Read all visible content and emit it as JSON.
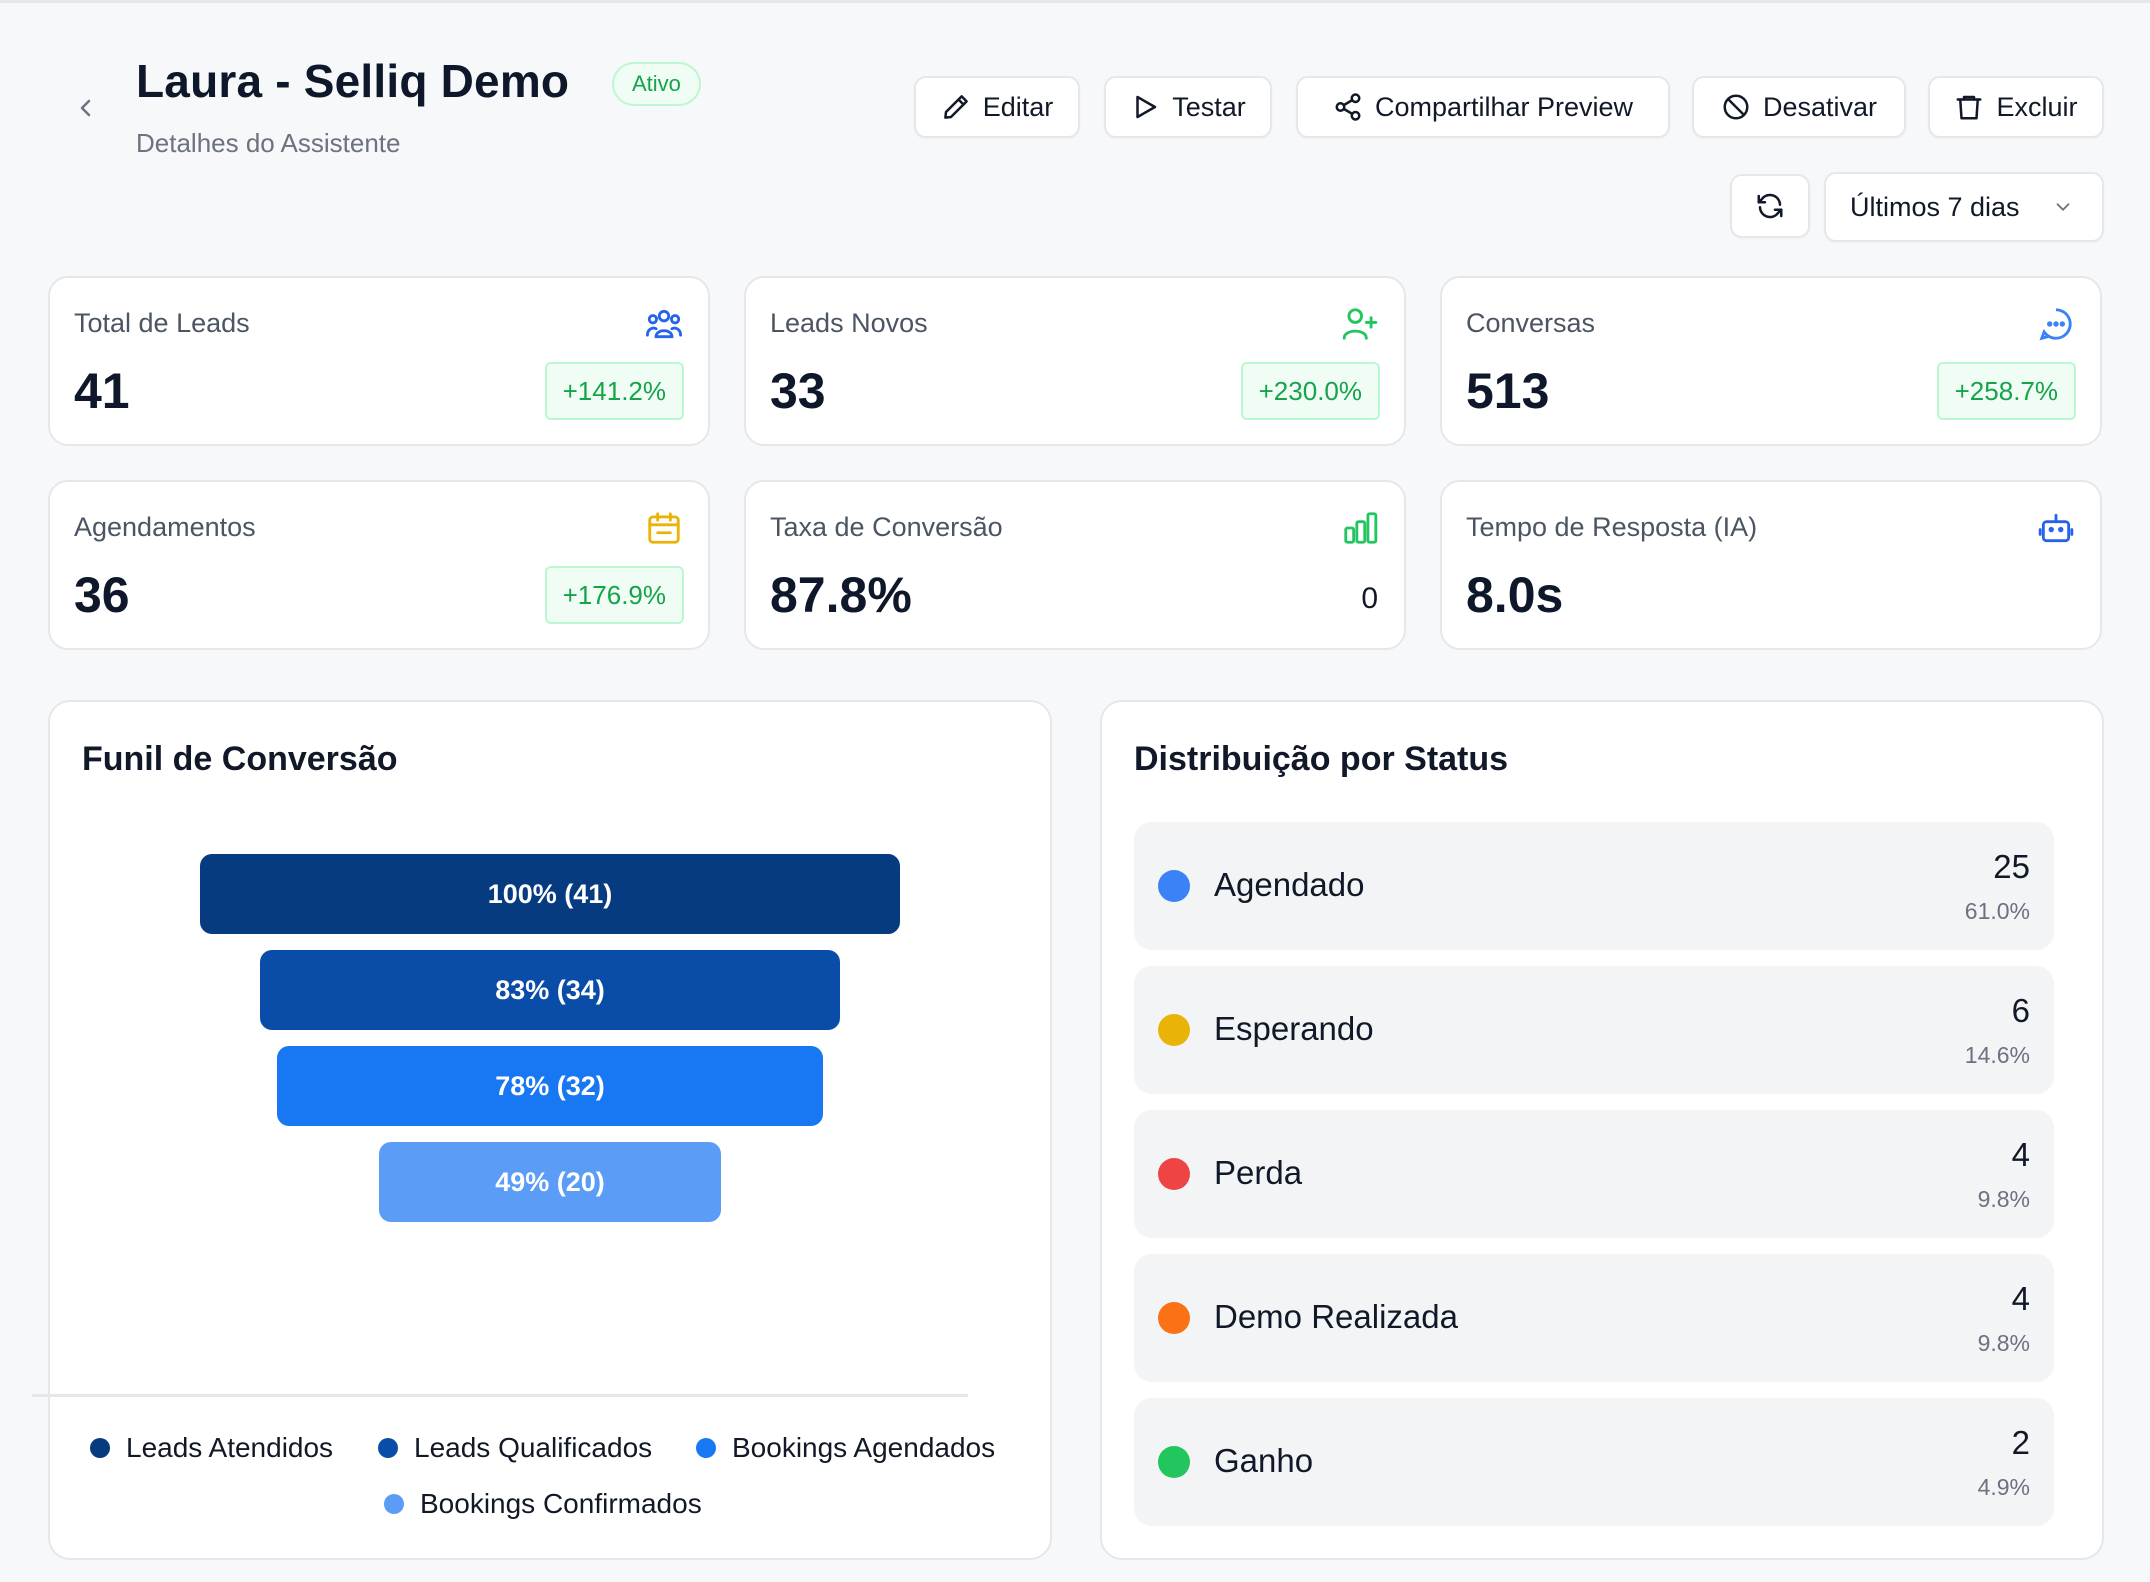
{
  "header": {
    "title": "Laura - Selliq Demo",
    "status_badge": "Ativo",
    "subtitle": "Detalhes do Assistente"
  },
  "actions": {
    "edit": "Editar",
    "test": "Testar",
    "share": "Compartilhar Preview",
    "deactivate": "Desativar",
    "delete": "Excluir"
  },
  "range_select": {
    "value": "Últimos 7 dias"
  },
  "stats": [
    {
      "label": "Total de Leads",
      "value": "41",
      "change": "+141.2%",
      "icon": "users-icon",
      "icon_color": "#2563eb"
    },
    {
      "label": "Leads Novos",
      "value": "33",
      "change": "+230.0%",
      "icon": "user-plus-icon",
      "icon_color": "#22c55e"
    },
    {
      "label": "Conversas",
      "value": "513",
      "change": "+258.7%",
      "icon": "message-circle-icon",
      "icon_color": "#3b82f6"
    },
    {
      "label": "Agendamentos",
      "value": "36",
      "change": "+176.9%",
      "icon": "calendar-icon",
      "icon_color": "#eab308"
    },
    {
      "label": "Taxa de Conversão",
      "value": "87.8%",
      "change": "0",
      "icon": "bar-chart-icon",
      "icon_color": "#22c55e"
    },
    {
      "label": "Tempo de Resposta (IA)",
      "value": "8.0s",
      "icon": "bot-icon",
      "icon_color": "#2563eb"
    }
  ],
  "funnel": {
    "title": "Funil de Conversão",
    "stages": [
      {
        "name": "Leads Atendidos",
        "label": "100% (41)",
        "count": 41,
        "percent": 100,
        "color": "#063b80"
      },
      {
        "name": "Leads Qualificados",
        "label": "83% (34)",
        "count": 34,
        "percent": 83,
        "color": "#0a4da8"
      },
      {
        "name": "Bookings Agendados",
        "label": "78% (32)",
        "count": 32,
        "percent": 78,
        "color": "#1877f2"
      },
      {
        "name": "Bookings Confirmados",
        "label": "49% (20)",
        "count": 20,
        "percent": 49,
        "color": "#5b9cf6"
      }
    ]
  },
  "distribution": {
    "title": "Distribuição por Status",
    "items": [
      {
        "name": "Agendado",
        "count": "25",
        "percent": "61.0%",
        "color": "#3b82f6"
      },
      {
        "name": "Esperando",
        "count": "6",
        "percent": "14.6%",
        "color": "#eab308"
      },
      {
        "name": "Perda",
        "count": "4",
        "percent": "9.8%",
        "color": "#ef4444"
      },
      {
        "name": "Demo Realizada",
        "count": "4",
        "percent": "9.8%",
        "color": "#f97316"
      },
      {
        "name": "Ganho",
        "count": "2",
        "percent": "4.9%",
        "color": "#22c55e"
      }
    ]
  }
}
